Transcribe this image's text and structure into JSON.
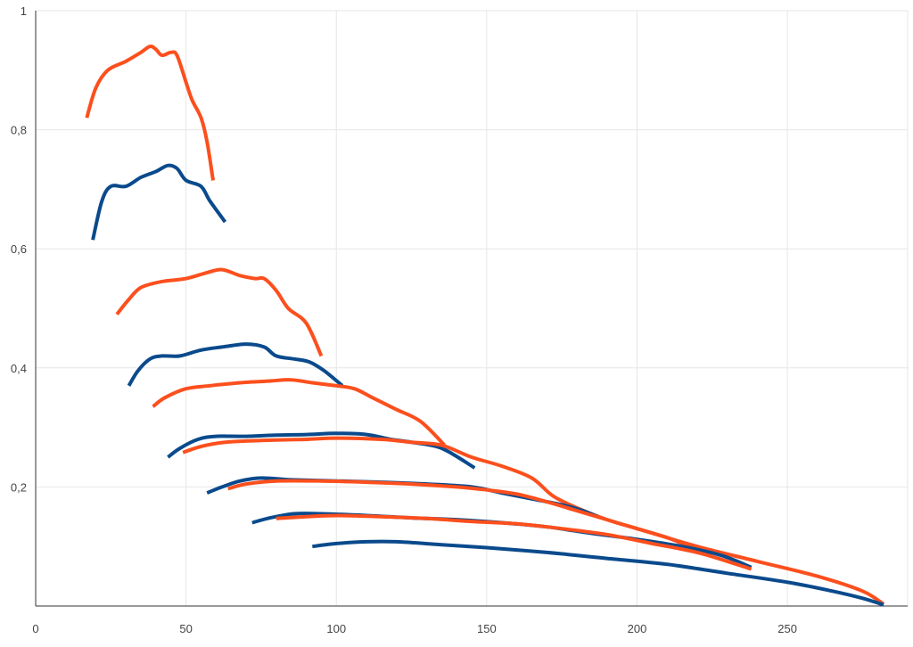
{
  "chart_data": {
    "type": "line",
    "xlim": [
      0,
      290
    ],
    "ylim": [
      0,
      1
    ],
    "x_ticks": [
      "0",
      "50",
      "100",
      "150",
      "200",
      "250"
    ],
    "y_ticks": [
      "",
      "0,2",
      "0,4",
      "0,6",
      "0,8",
      "1"
    ],
    "grid": true,
    "legend": "none",
    "series": [
      {
        "color": "#fc4f1d",
        "points": [
          [
            17,
            0.82
          ],
          [
            20,
            0.87
          ],
          [
            24,
            0.9
          ],
          [
            30,
            0.915
          ],
          [
            35,
            0.93
          ],
          [
            38,
            0.94
          ],
          [
            40,
            0.935
          ],
          [
            42,
            0.925
          ],
          [
            45,
            0.93
          ],
          [
            47,
            0.925
          ],
          [
            50,
            0.88
          ],
          [
            52,
            0.85
          ],
          [
            55,
            0.82
          ],
          [
            57,
            0.78
          ],
          [
            59,
            0.715
          ]
        ]
      },
      {
        "color": "#0a4a8c",
        "points": [
          [
            19,
            0.615
          ],
          [
            22,
            0.68
          ],
          [
            25,
            0.705
          ],
          [
            30,
            0.705
          ],
          [
            35,
            0.72
          ],
          [
            40,
            0.73
          ],
          [
            44,
            0.74
          ],
          [
            47,
            0.735
          ],
          [
            50,
            0.715
          ],
          [
            55,
            0.705
          ],
          [
            58,
            0.68
          ],
          [
            63,
            0.645
          ]
        ]
      },
      {
        "color": "#fc4f1d",
        "points": [
          [
            27,
            0.49
          ],
          [
            31,
            0.515
          ],
          [
            35,
            0.535
          ],
          [
            42,
            0.545
          ],
          [
            50,
            0.55
          ],
          [
            57,
            0.56
          ],
          [
            62,
            0.565
          ],
          [
            68,
            0.555
          ],
          [
            73,
            0.55
          ],
          [
            76,
            0.55
          ],
          [
            80,
            0.53
          ],
          [
            84,
            0.5
          ],
          [
            90,
            0.475
          ],
          [
            95,
            0.42
          ]
        ]
      },
      {
        "color": "#0a4a8c",
        "points": [
          [
            31,
            0.37
          ],
          [
            34,
            0.395
          ],
          [
            38,
            0.415
          ],
          [
            42,
            0.42
          ],
          [
            48,
            0.42
          ],
          [
            55,
            0.43
          ],
          [
            62,
            0.435
          ],
          [
            70,
            0.44
          ],
          [
            76,
            0.435
          ],
          [
            80,
            0.42
          ],
          [
            86,
            0.415
          ],
          [
            91,
            0.41
          ],
          [
            96,
            0.395
          ],
          [
            102,
            0.37
          ]
        ]
      },
      {
        "color": "#fc4f1d",
        "points": [
          [
            39,
            0.335
          ],
          [
            43,
            0.35
          ],
          [
            50,
            0.365
          ],
          [
            58,
            0.37
          ],
          [
            68,
            0.375
          ],
          [
            78,
            0.378
          ],
          [
            85,
            0.38
          ],
          [
            92,
            0.375
          ],
          [
            100,
            0.37
          ],
          [
            106,
            0.365
          ],
          [
            112,
            0.35
          ],
          [
            120,
            0.33
          ],
          [
            128,
            0.31
          ],
          [
            136,
            0.27
          ]
        ]
      },
      {
        "color": "#0a4a8c",
        "points": [
          [
            44,
            0.25
          ],
          [
            48,
            0.265
          ],
          [
            54,
            0.28
          ],
          [
            60,
            0.285
          ],
          [
            70,
            0.285
          ],
          [
            80,
            0.287
          ],
          [
            90,
            0.288
          ],
          [
            100,
            0.29
          ],
          [
            110,
            0.288
          ],
          [
            118,
            0.28
          ],
          [
            125,
            0.275
          ],
          [
            135,
            0.265
          ],
          [
            146,
            0.232
          ]
        ]
      },
      {
        "color": "#fc4f1d",
        "points": [
          [
            49,
            0.258
          ],
          [
            55,
            0.268
          ],
          [
            63,
            0.275
          ],
          [
            75,
            0.278
          ],
          [
            90,
            0.28
          ],
          [
            100,
            0.282
          ],
          [
            115,
            0.28
          ],
          [
            125,
            0.275
          ],
          [
            135,
            0.27
          ],
          [
            145,
            0.25
          ],
          [
            155,
            0.235
          ],
          [
            165,
            0.215
          ],
          [
            172,
            0.185
          ],
          [
            180,
            0.165
          ],
          [
            190,
            0.145
          ],
          [
            200,
            0.13
          ],
          [
            210,
            0.115
          ],
          [
            220,
            0.095
          ]
        ]
      },
      {
        "color": "#0a4a8c",
        "points": [
          [
            57,
            0.19
          ],
          [
            62,
            0.2
          ],
          [
            68,
            0.21
          ],
          [
            75,
            0.215
          ],
          [
            85,
            0.212
          ],
          [
            100,
            0.21
          ],
          [
            115,
            0.208
          ],
          [
            130,
            0.205
          ],
          [
            145,
            0.2
          ],
          [
            155,
            0.19
          ],
          [
            165,
            0.18
          ],
          [
            175,
            0.17
          ],
          [
            182,
            0.16
          ],
          [
            187,
            0.15
          ]
        ]
      },
      {
        "color": "#fc4f1d",
        "points": [
          [
            64,
            0.197
          ],
          [
            70,
            0.205
          ],
          [
            80,
            0.21
          ],
          [
            95,
            0.21
          ],
          [
            110,
            0.208
          ],
          [
            125,
            0.205
          ],
          [
            140,
            0.2
          ],
          [
            150,
            0.195
          ],
          [
            160,
            0.188
          ],
          [
            170,
            0.175
          ],
          [
            180,
            0.16
          ],
          [
            200,
            0.13
          ],
          [
            220,
            0.1
          ],
          [
            240,
            0.075
          ],
          [
            260,
            0.05
          ],
          [
            275,
            0.025
          ],
          [
            282,
            0.003
          ]
        ]
      },
      {
        "color": "#0a4a8c",
        "points": [
          [
            72,
            0.14
          ],
          [
            78,
            0.148
          ],
          [
            86,
            0.155
          ],
          [
            95,
            0.155
          ],
          [
            110,
            0.152
          ],
          [
            125,
            0.148
          ],
          [
            140,
            0.145
          ],
          [
            155,
            0.14
          ],
          [
            170,
            0.133
          ],
          [
            185,
            0.122
          ],
          [
            200,
            0.112
          ],
          [
            215,
            0.1
          ],
          [
            228,
            0.085
          ],
          [
            238,
            0.065
          ]
        ]
      },
      {
        "color": "#fc4f1d",
        "points": [
          [
            80,
            0.147
          ],
          [
            90,
            0.15
          ],
          [
            100,
            0.152
          ],
          [
            115,
            0.15
          ],
          [
            130,
            0.147
          ],
          [
            145,
            0.142
          ],
          [
            160,
            0.138
          ],
          [
            175,
            0.13
          ],
          [
            190,
            0.12
          ],
          [
            205,
            0.105
          ],
          [
            220,
            0.09
          ],
          [
            230,
            0.075
          ],
          [
            238,
            0.062
          ]
        ]
      },
      {
        "color": "#0a4a8c",
        "points": [
          [
            92,
            0.1
          ],
          [
            100,
            0.105
          ],
          [
            110,
            0.108
          ],
          [
            120,
            0.108
          ],
          [
            135,
            0.103
          ],
          [
            150,
            0.098
          ],
          [
            170,
            0.09
          ],
          [
            190,
            0.08
          ],
          [
            210,
            0.07
          ],
          [
            230,
            0.055
          ],
          [
            250,
            0.04
          ],
          [
            265,
            0.025
          ],
          [
            275,
            0.013
          ],
          [
            282,
            0.002
          ]
        ]
      }
    ]
  }
}
